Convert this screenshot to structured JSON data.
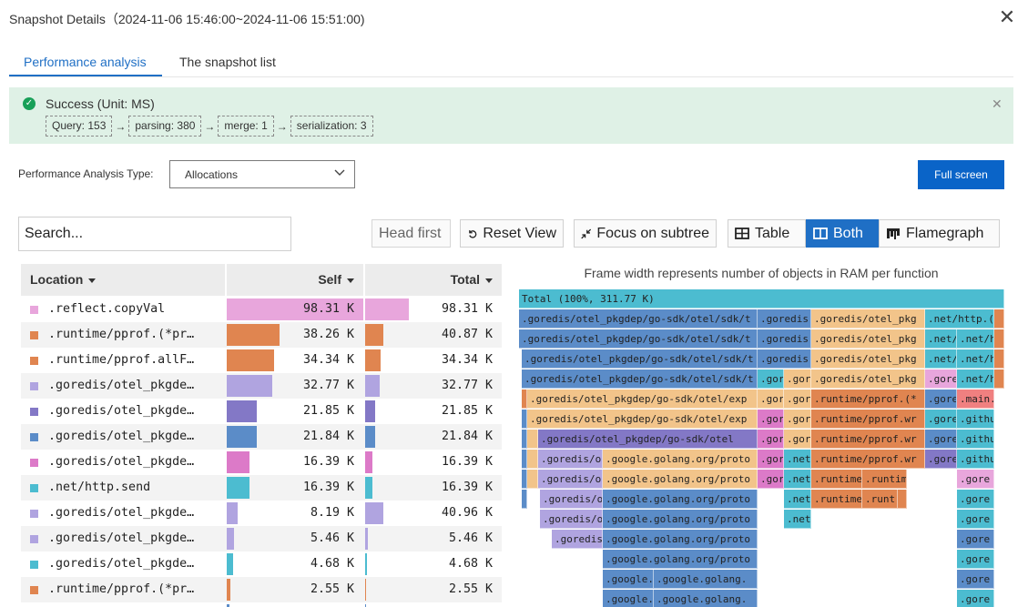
{
  "dialog": {
    "title": "Snapshot Details（2024-11-06 15:46:00~2024-11-06 15:51:00)"
  },
  "tabs": [
    {
      "label": "Performance analysis",
      "active": true
    },
    {
      "label": "The snapshot list",
      "active": false
    }
  ],
  "alert": {
    "title": "Success (Unit: MS)",
    "steps": [
      "Query: 153",
      "parsing: 380",
      "merge: 1",
      "serialization: 3"
    ],
    "arrow": "→"
  },
  "analysis_type": {
    "label": "Performance Analysis Type:",
    "value": "Allocations"
  },
  "full_screen_label": "Full screen",
  "search": {
    "placeholder": "Search..."
  },
  "toolbar": {
    "head_first": "Head first",
    "reset_view": "Reset View",
    "focus_subtree": "Focus on subtree",
    "table": "Table",
    "both": "Both",
    "flamegraph": "Flamegraph"
  },
  "table": {
    "columns": {
      "location": "Location",
      "self": "Self",
      "total": "Total"
    },
    "max_value": 98.31,
    "rows": [
      {
        "location": ".reflect.copyVal",
        "self": "98.31 K",
        "total": "98.31 K",
        "self_value": 98.31,
        "total_value": 98.31,
        "color": "#e8a6dc"
      },
      {
        "location": ".runtime/pprof.(*pr…",
        "self": "38.26 K",
        "total": "40.87 K",
        "self_value": 38.26,
        "total_value": 40.87,
        "color": "#e08550"
      },
      {
        "location": ".runtime/pprof.allF…",
        "self": "34.34 K",
        "total": "34.34 K",
        "self_value": 34.34,
        "total_value": 34.34,
        "color": "#e08550"
      },
      {
        "location": ".goredis/otel_pkgde…",
        "self": "32.77 K",
        "total": "32.77 K",
        "self_value": 32.77,
        "total_value": 32.77,
        "color": "#b0a4e0"
      },
      {
        "location": ".goredis/otel_pkgde…",
        "self": "21.85 K",
        "total": "21.85 K",
        "self_value": 21.85,
        "total_value": 21.85,
        "color": "#8378c6"
      },
      {
        "location": ".goredis/otel_pkgde…",
        "self": "21.84 K",
        "total": "21.84 K",
        "self_value": 21.84,
        "total_value": 21.84,
        "color": "#5b8cc8"
      },
      {
        "location": ".goredis/otel_pkgde…",
        "self": "16.39 K",
        "total": "16.39 K",
        "self_value": 16.39,
        "total_value": 16.39,
        "color": "#dc7ac8"
      },
      {
        "location": ".net/http.send",
        "self": "16.39 K",
        "total": "16.39 K",
        "self_value": 16.39,
        "total_value": 16.39,
        "color": "#4cbcd0"
      },
      {
        "location": ".goredis/otel_pkgde…",
        "self": "8.19 K",
        "total": "40.96 K",
        "self_value": 8.19,
        "total_value": 40.96,
        "color": "#b0a4e0"
      },
      {
        "location": ".goredis/otel_pkgde…",
        "self": "5.46 K",
        "total": "5.46 K",
        "self_value": 5.46,
        "total_value": 5.46,
        "color": "#b0a4e0"
      },
      {
        "location": ".goredis/otel_pkgde…",
        "self": "4.68 K",
        "total": "4.68 K",
        "self_value": 4.68,
        "total_value": 4.68,
        "color": "#4cbcd0"
      },
      {
        "location": ".runtime/pprof.(*pr…",
        "self": "2.55 K",
        "total": "2.55 K",
        "self_value": 2.55,
        "total_value": 2.55,
        "color": "#e08550"
      },
      {
        "location": "",
        "self": "",
        "total": "",
        "self_value": 2.0,
        "total_value": 2.0,
        "color": "#5b8cc8"
      }
    ]
  },
  "flamegraph": {
    "title": "Frame width represents number of objects in RAM per function",
    "total_label": "Total (100%, 311.77 K)",
    "frames": [
      {
        "l": ".goredis/otel_pkgdep/go-sdk/otel/sdk/t",
        "c": "#5b8cc8",
        "s": 0.0,
        "e": 49.2,
        "d": 1
      },
      {
        "l": ".goredis",
        "c": "#5b8cc8",
        "s": 49.2,
        "e": 60.2,
        "d": 1
      },
      {
        "l": ".goredis/otel_pkg",
        "c": "#f2c48a",
        "s": 60.2,
        "e": 83.6,
        "d": 1
      },
      {
        "l": ".net/http.(s",
        "c": "#4cbcd0",
        "s": 83.6,
        "e": 98.0,
        "d": 1
      },
      {
        "l": "",
        "c": "#e08550",
        "s": 98.0,
        "e": 100.0,
        "d": 1
      },
      {
        "l": ".goredis/otel_pkgdep/go-sdk/otel/sdk/t",
        "c": "#5b8cc8",
        "s": 0.0,
        "e": 49.2,
        "d": 2
      },
      {
        "l": ".goredis",
        "c": "#5b8cc8",
        "s": 49.2,
        "e": 60.2,
        "d": 2
      },
      {
        "l": ".goredis/otel_pkg",
        "c": "#f2c48a",
        "s": 60.2,
        "e": 83.6,
        "d": 2
      },
      {
        "l": ".net/",
        "c": "#4cbcd0",
        "s": 83.6,
        "e": 90.2,
        "d": 2
      },
      {
        "l": ".net/h",
        "c": "#4cbcd0",
        "s": 90.2,
        "e": 98.0,
        "d": 2
      },
      {
        "l": "",
        "c": "#e08550",
        "s": 98.0,
        "e": 100.0,
        "d": 2
      },
      {
        "l": ".goredis/otel_pkgdep/go-sdk/otel/sdk/t",
        "c": "#5b8cc8",
        "s": 0.6,
        "e": 49.2,
        "d": 3
      },
      {
        "l": ".goredis",
        "c": "#5b8cc8",
        "s": 49.2,
        "e": 60.2,
        "d": 3
      },
      {
        "l": ".goredis/otel_pkg",
        "c": "#f2c48a",
        "s": 60.2,
        "e": 83.6,
        "d": 3
      },
      {
        "l": ".net/",
        "c": "#4cbcd0",
        "s": 83.6,
        "e": 90.2,
        "d": 3
      },
      {
        "l": ".net/h",
        "c": "#4cbcd0",
        "s": 90.2,
        "e": 98.0,
        "d": 3
      },
      {
        "l": "",
        "c": "#e08550",
        "s": 98.0,
        "e": 100.0,
        "d": 3
      },
      {
        "l": ".goredis/otel_pkgdep/go-sdk/otel/sdk/t",
        "c": "#5b8cc8",
        "s": 0.6,
        "e": 49.2,
        "d": 4
      },
      {
        "l": ".gor",
        "c": "#4cbcd0",
        "s": 49.2,
        "e": 54.6,
        "d": 4
      },
      {
        "l": ".gor",
        "c": "#f2c48a",
        "s": 54.6,
        "e": 60.2,
        "d": 4
      },
      {
        "l": ".goredis/otel_pkg",
        "c": "#f2c48a",
        "s": 60.2,
        "e": 83.6,
        "d": 4
      },
      {
        "l": ".gore",
        "c": "#e8a6dc",
        "s": 83.6,
        "e": 90.2,
        "d": 4
      },
      {
        "l": ".net/h",
        "c": "#4cbcd0",
        "s": 90.2,
        "e": 98.0,
        "d": 4
      },
      {
        "l": "",
        "c": "#e08550",
        "s": 98.0,
        "e": 100.0,
        "d": 4
      },
      {
        "l": "",
        "c": "#e08550",
        "s": 0.6,
        "e": 1.7,
        "d": 5
      },
      {
        "l": ".goredis/otel_pkgdep/go-sdk/otel/exp",
        "c": "#f2c48a",
        "s": 1.7,
        "e": 49.2,
        "d": 5
      },
      {
        "l": ".gor",
        "c": "#f2c48a",
        "s": 49.2,
        "e": 54.6,
        "d": 5
      },
      {
        "l": ".gor",
        "c": "#f2c48a",
        "s": 54.6,
        "e": 60.2,
        "d": 5
      },
      {
        "l": ".runtime/pprof.(*",
        "c": "#e08550",
        "s": 60.2,
        "e": 83.6,
        "d": 5
      },
      {
        "l": ".gore",
        "c": "#5b8cc8",
        "s": 83.6,
        "e": 90.2,
        "d": 5
      },
      {
        "l": ".main.",
        "c": "#f08080",
        "s": 90.2,
        "e": 98.0,
        "d": 5
      },
      {
        "l": "",
        "c": "#5b8cc8",
        "s": 0.6,
        "e": 1.7,
        "d": 6
      },
      {
        "l": ".goredis/otel_pkgdep/go-sdk/otel/exp",
        "c": "#f2c48a",
        "s": 1.7,
        "e": 49.2,
        "d": 6
      },
      {
        "l": ".gor",
        "c": "#dc7ac8",
        "s": 49.2,
        "e": 54.6,
        "d": 6
      },
      {
        "l": ".gor",
        "c": "#f2c48a",
        "s": 54.6,
        "e": 60.2,
        "d": 6
      },
      {
        "l": ".runtime/pprof.wr",
        "c": "#e08550",
        "s": 60.2,
        "e": 83.6,
        "d": 6
      },
      {
        "l": ".gore",
        "c": "#4cbcd0",
        "s": 83.6,
        "e": 90.2,
        "d": 6
      },
      {
        "l": ".githu",
        "c": "#4cbcd0",
        "s": 90.2,
        "e": 98.0,
        "d": 6
      },
      {
        "l": "",
        "c": "#5b8cc8",
        "s": 0.6,
        "e": 1.7,
        "d": 7
      },
      {
        "l": "",
        "c": "#f2c48a",
        "s": 1.7,
        "e": 3.9,
        "d": 7
      },
      {
        "l": ".goredis/otel_pkgdep/go-sdk/otel",
        "c": "#8378c6",
        "s": 3.9,
        "e": 49.2,
        "d": 7
      },
      {
        "l": ".gor",
        "c": "#dc7ac8",
        "s": 49.2,
        "e": 54.6,
        "d": 7
      },
      {
        "l": ".gor",
        "c": "#f2c48a",
        "s": 54.6,
        "e": 60.2,
        "d": 7
      },
      {
        "l": ".runtime/pprof.wr",
        "c": "#e08550",
        "s": 60.2,
        "e": 83.6,
        "d": 7
      },
      {
        "l": ".gore",
        "c": "#5b8cc8",
        "s": 83.6,
        "e": 90.2,
        "d": 7
      },
      {
        "l": ".githu",
        "c": "#4cbcd0",
        "s": 90.2,
        "e": 98.0,
        "d": 7
      },
      {
        "l": "",
        "c": "#5b8cc8",
        "s": 0.6,
        "e": 1.7,
        "d": 8
      },
      {
        "l": "",
        "c": "#f2c48a",
        "s": 1.7,
        "e": 3.9,
        "d": 8
      },
      {
        "l": ".goredis/o",
        "c": "#b0a4e0",
        "s": 3.9,
        "e": 17.3,
        "d": 8
      },
      {
        "l": ".google.golang.org/proto",
        "c": "#f2c48a",
        "s": 17.3,
        "e": 49.2,
        "d": 8
      },
      {
        "l": ".gor",
        "c": "#dc7ac8",
        "s": 49.2,
        "e": 54.6,
        "d": 8
      },
      {
        "l": ".net",
        "c": "#4cbcd0",
        "s": 54.6,
        "e": 60.2,
        "d": 8
      },
      {
        "l": ".runtime/pprof.wr",
        "c": "#e08550",
        "s": 60.2,
        "e": 83.6,
        "d": 8
      },
      {
        "l": ".gore",
        "c": "#8378c6",
        "s": 83.6,
        "e": 90.2,
        "d": 8
      },
      {
        "l": ".githu",
        "c": "#4cbcd0",
        "s": 90.2,
        "e": 98.0,
        "d": 8
      },
      {
        "l": "",
        "c": "#5b8cc8",
        "s": 0.6,
        "e": 1.7,
        "d": 9
      },
      {
        "l": "",
        "c": "#f2c48a",
        "s": 1.7,
        "e": 3.9,
        "d": 9
      },
      {
        "l": ".goredis/o",
        "c": "#b0a4e0",
        "s": 3.9,
        "e": 17.3,
        "d": 9
      },
      {
        "l": ".google.golang.org/proto",
        "c": "#f2c48a",
        "s": 17.3,
        "e": 49.2,
        "d": 9
      },
      {
        "l": ".gor",
        "c": "#dc7ac8",
        "s": 49.2,
        "e": 54.6,
        "d": 9
      },
      {
        "l": ".net",
        "c": "#4cbcd0",
        "s": 54.6,
        "e": 60.2,
        "d": 9
      },
      {
        "l": ".runtime",
        "c": "#e08550",
        "s": 60.2,
        "e": 70.8,
        "d": 9
      },
      {
        "l": ".runtim",
        "c": "#e08550",
        "s": 70.8,
        "e": 79.9,
        "d": 9
      },
      {
        "l": ".gore",
        "c": "#e8a6dc",
        "s": 90.2,
        "e": 98.0,
        "d": 9
      },
      {
        "l": "",
        "c": "#5b8cc8",
        "s": 0.6,
        "e": 1.7,
        "d": 10
      },
      {
        "l": ".goredis/o",
        "c": "#b0a4e0",
        "s": 4.3,
        "e": 17.3,
        "d": 10
      },
      {
        "l": ".google.golang.org/proto",
        "c": "#5b8cc8",
        "s": 17.3,
        "e": 49.2,
        "d": 10
      },
      {
        "l": ".net",
        "c": "#4cbcd0",
        "s": 54.6,
        "e": 60.2,
        "d": 10
      },
      {
        "l": ".runtime",
        "c": "#e08550",
        "s": 60.2,
        "e": 70.8,
        "d": 10
      },
      {
        "l": ".runt",
        "c": "#e08550",
        "s": 70.8,
        "e": 78.0,
        "d": 10
      },
      {
        "l": "",
        "c": "#e08550",
        "s": 78.0,
        "e": 79.9,
        "d": 10
      },
      {
        "l": ".gore",
        "c": "#4cbcd0",
        "s": 90.2,
        "e": 98.0,
        "d": 10
      },
      {
        "l": ".goredis/o",
        "c": "#b0a4e0",
        "s": 4.3,
        "e": 17.3,
        "d": 11
      },
      {
        "l": ".google.golang.org/proto",
        "c": "#5b8cc8",
        "s": 17.3,
        "e": 49.2,
        "d": 11
      },
      {
        "l": ".net",
        "c": "#4cbcd0",
        "s": 54.6,
        "e": 60.2,
        "d": 11
      },
      {
        "l": ".gore",
        "c": "#4cbcd0",
        "s": 90.2,
        "e": 98.0,
        "d": 11
      },
      {
        "l": ".goredis",
        "c": "#b0a4e0",
        "s": 6.8,
        "e": 17.3,
        "d": 12
      },
      {
        "l": ".google.golang.org/proto",
        "c": "#5b8cc8",
        "s": 17.3,
        "e": 49.2,
        "d": 12
      },
      {
        "l": ".gore",
        "c": "#5b8cc8",
        "s": 90.2,
        "e": 98.0,
        "d": 12
      },
      {
        "l": ".google.golang.org/proto",
        "c": "#5b8cc8",
        "s": 17.3,
        "e": 49.2,
        "d": 13
      },
      {
        "l": ".gore",
        "c": "#4cbcd0",
        "s": 90.2,
        "e": 98.0,
        "d": 13
      },
      {
        "l": ".google.",
        "c": "#5b8cc8",
        "s": 17.3,
        "e": 27.8,
        "d": 14
      },
      {
        "l": ".google.golang.",
        "c": "#5b8cc8",
        "s": 27.8,
        "e": 49.2,
        "d": 14
      },
      {
        "l": ".gore",
        "c": "#5b8cc8",
        "s": 90.2,
        "e": 98.0,
        "d": 14
      },
      {
        "l": ".google.",
        "c": "#5b8cc8",
        "s": 17.3,
        "e": 27.8,
        "d": 15
      },
      {
        "l": ".google.golang.",
        "c": "#5b8cc8",
        "s": 27.8,
        "e": 49.2,
        "d": 15
      },
      {
        "l": ".gore",
        "c": "#4cbcd0",
        "s": 90.2,
        "e": 98.0,
        "d": 15
      }
    ]
  }
}
